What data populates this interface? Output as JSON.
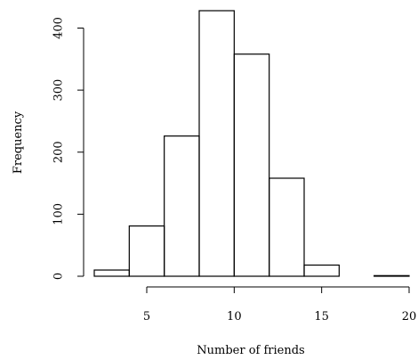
{
  "chart_data": {
    "type": "bar",
    "subtype": "histogram",
    "title": "",
    "xlabel": "Number of friends",
    "ylabel": "Frequency",
    "bins": [
      {
        "start": 2,
        "end": 4,
        "count": 10
      },
      {
        "start": 4,
        "end": 6,
        "count": 81
      },
      {
        "start": 6,
        "end": 8,
        "count": 226
      },
      {
        "start": 8,
        "end": 10,
        "count": 428
      },
      {
        "start": 10,
        "end": 12,
        "count": 358
      },
      {
        "start": 12,
        "end": 14,
        "count": 158
      },
      {
        "start": 14,
        "end": 16,
        "count": 18
      },
      {
        "start": 16,
        "end": 18,
        "count": 0
      },
      {
        "start": 18,
        "end": 20,
        "count": 1
      }
    ],
    "xticks": [
      5,
      10,
      15,
      20
    ],
    "xtick_labels": [
      "5",
      "10",
      "15",
      "20"
    ],
    "yticks": [
      0,
      100,
      200,
      300,
      400
    ],
    "ytick_labels": [
      "0",
      "100",
      "200",
      "300",
      "400"
    ],
    "xlim": [
      2,
      20
    ],
    "ylim": [
      0,
      428
    ],
    "grid": false,
    "legend": "none"
  }
}
